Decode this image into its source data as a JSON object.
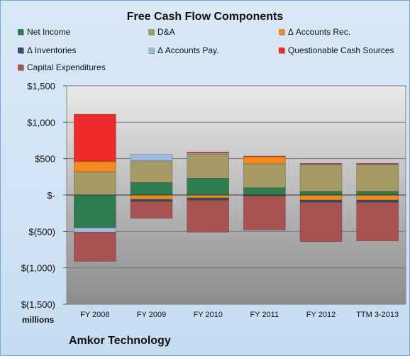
{
  "chart_data": {
    "type": "bar",
    "stacked": true,
    "title": "Free Cash Flow Components",
    "categories": [
      "FY 2008",
      "FY 2009",
      "FY 2010",
      "FY 2011",
      "FY 2012",
      "TTM 3-2013"
    ],
    "series": [
      {
        "name": "Net Income",
        "color": "#2e7d50",
        "values": [
          -450,
          170,
          230,
          100,
          50,
          50
        ]
      },
      {
        "name": "D&A",
        "color": "#a59a66",
        "values": [
          320,
          300,
          330,
          330,
          370,
          370
        ]
      },
      {
        "name": "Δ Accounts Rec.",
        "color": "#f28a1e",
        "values": [
          140,
          -60,
          -40,
          100,
          -70,
          -70
        ]
      },
      {
        "name": "Δ Inventories",
        "color": "#34506e",
        "values": [
          0,
          -30,
          -30,
          -10,
          -30,
          -30
        ]
      },
      {
        "name": "Δ Accounts Pay.",
        "color": "#9dbbe0",
        "values": [
          -60,
          90,
          15,
          0,
          10,
          10
        ]
      },
      {
        "name": "Questionable Cash Sources",
        "color": "#ee2b2b",
        "values": [
          650,
          0,
          15,
          5,
          5,
          5
        ]
      },
      {
        "name": "Capital Expenditures",
        "color": "#a85252",
        "values": [
          -400,
          -230,
          -440,
          -470,
          -540,
          -530
        ]
      }
    ],
    "yticks": [
      "$1,500",
      "$1,000",
      "$500",
      "$-",
      "$(500)",
      "$(1,000)",
      "$(1,500)"
    ],
    "ylim": [
      -1500,
      1500
    ],
    "grid": true,
    "legend": "top",
    "units_label": "millions",
    "footer": "Amkor Technology"
  }
}
